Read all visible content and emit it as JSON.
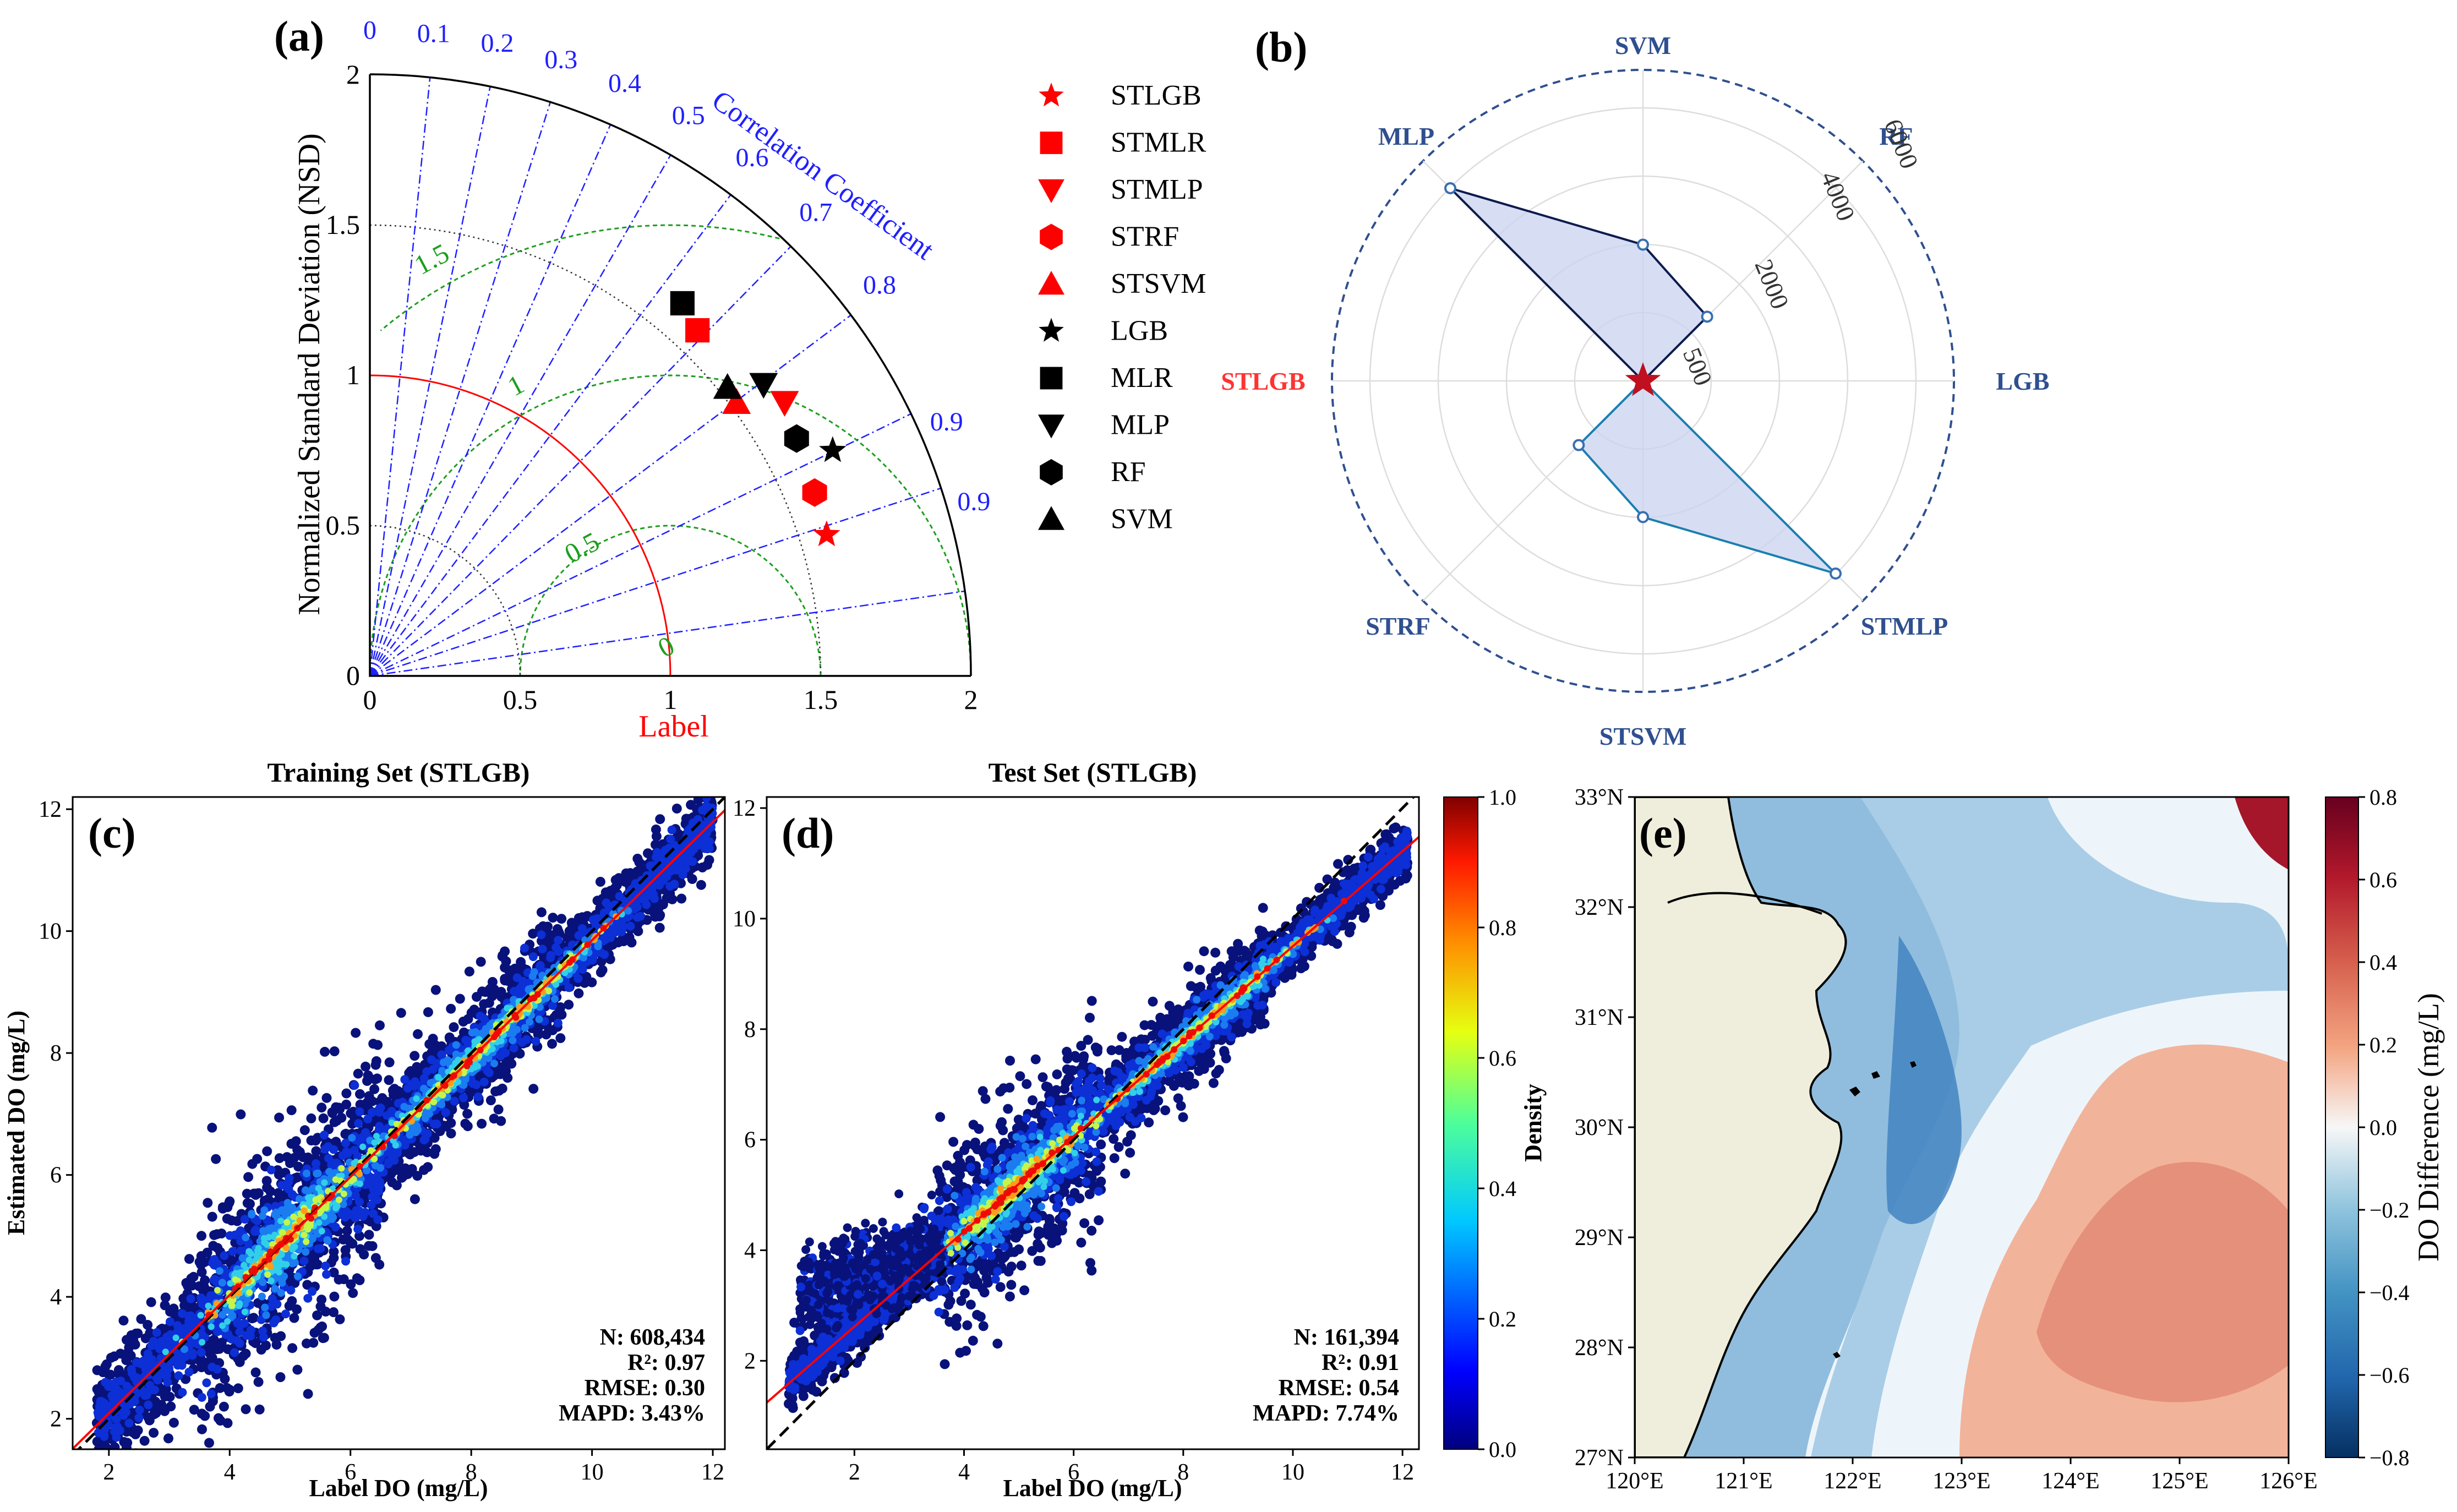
{
  "chart_data": [
    {
      "panel": "(a)",
      "type": "scatter",
      "subtype": "taylor-diagram",
      "ylabel": "Normalized Standard Deviation (NSD)",
      "xlabel": "Label",
      "arc_label": "Correlation Coefficient",
      "axis_ticks": [
        "0",
        "0.5",
        "1",
        "1.5",
        "2"
      ],
      "corr_ticks": [
        "0",
        "0.1",
        "0.2",
        "0.3",
        "0.4",
        "0.5",
        "0.6",
        "0.7",
        "0.8",
        "0.9",
        "0.9"
      ],
      "rmsd_ticks": [
        "0",
        "0.5",
        "1",
        "1.5"
      ],
      "xlim": [
        0,
        2
      ],
      "ylim": [
        0,
        2
      ],
      "points": [
        {
          "name": "STLGB",
          "x": 1.52,
          "y": 0.47,
          "marker": "star",
          "color": "#ff0000"
        },
        {
          "name": "STMLR",
          "x": 1.09,
          "y": 1.15,
          "marker": "square",
          "color": "#ff0000"
        },
        {
          "name": "STMLP",
          "x": 1.38,
          "y": 0.91,
          "marker": "tri-down",
          "color": "#ff0000"
        },
        {
          "name": "STRF",
          "x": 1.48,
          "y": 0.61,
          "marker": "hexagon",
          "color": "#ff0000"
        },
        {
          "name": "STSVM",
          "x": 1.22,
          "y": 0.91,
          "marker": "tri-up",
          "color": "#ff0000"
        },
        {
          "name": "LGB",
          "x": 1.54,
          "y": 0.75,
          "marker": "star",
          "color": "#000000"
        },
        {
          "name": "MLR",
          "x": 1.04,
          "y": 1.24,
          "marker": "square",
          "color": "#000000"
        },
        {
          "name": "MLP",
          "x": 1.31,
          "y": 0.97,
          "marker": "tri-down",
          "color": "#000000"
        },
        {
          "name": "RF",
          "x": 1.42,
          "y": 0.79,
          "marker": "hexagon",
          "color": "#000000"
        },
        {
          "name": "SVM",
          "x": 1.19,
          "y": 0.96,
          "marker": "tri-up",
          "color": "#000000"
        }
      ]
    },
    {
      "panel": "(b)",
      "type": "radar",
      "categories": [
        "SVM",
        "RF",
        "LGB",
        "STMLP",
        "STSVM",
        "STRF",
        "STLGB",
        "MLP"
      ],
      "values": [
        3000,
        2000,
        0,
        6000,
        3000,
        2000,
        0,
        6000
      ],
      "radial_ticks": [
        "500",
        "2000",
        "4000",
        "6000"
      ],
      "rlim": [
        0,
        6000
      ]
    },
    {
      "panel": "(c)",
      "type": "scatter",
      "subtype": "density-scatter",
      "title": "Training Set (STLGB)",
      "xlabel": "Label DO (mg/L)",
      "ylabel": "Estimated DO (mg/L)",
      "xlim": [
        1.4,
        12.2
      ],
      "ylim": [
        1.5,
        12.2
      ],
      "x_ticks": [
        2,
        4,
        6,
        8,
        10,
        12
      ],
      "y_ticks": [
        2,
        4,
        6,
        8,
        10,
        12
      ],
      "fit_line": {
        "slope": 0.97,
        "intercept": 0.15
      },
      "stats": [
        "N: 608,434",
        "R²: 0.97",
        "RMSE: 0.30",
        "MAPD: 3.43%"
      ]
    },
    {
      "panel": "(d)",
      "type": "scatter",
      "subtype": "density-scatter",
      "title": "Test Set (STLGB)",
      "xlabel": "Label DO (mg/L)",
      "ylabel": "",
      "xlim": [
        0.4,
        12.3
      ],
      "ylim": [
        0.4,
        12.2
      ],
      "x_ticks": [
        2,
        4,
        6,
        8,
        10,
        12
      ],
      "y_ticks": [
        2,
        4,
        6,
        8,
        10,
        12
      ],
      "fit_line": {
        "slope": 0.86,
        "intercept": 0.9
      },
      "stats": [
        "N: 161,394",
        "R²: 0.91",
        "RMSE: 0.54",
        "MAPD: 7.74%"
      ],
      "colorbar": {
        "label": "Density",
        "ticks": [
          "0.0",
          "0.2",
          "0.4",
          "0.6",
          "0.8",
          "1.0"
        ]
      }
    },
    {
      "panel": "(e)",
      "type": "heatmap",
      "subtype": "map",
      "x_ticks": [
        "120°E",
        "121°E",
        "122°E",
        "123°E",
        "124°E",
        "125°E",
        "126°E"
      ],
      "y_ticks": [
        "27°N",
        "28°N",
        "29°N",
        "30°N",
        "31°N",
        "32°N",
        "33°N"
      ],
      "colorbar": {
        "label": "DO Difference (mg/L)",
        "ticks": [
          "0.8",
          "0.6",
          "0.4",
          "0.2",
          "0.0",
          "−0.2",
          "−0.4",
          "−0.6",
          "−0.8"
        ],
        "range": [
          -0.8,
          0.8
        ]
      }
    }
  ],
  "panel_labels": {
    "a": "(a)",
    "b": "(b)",
    "c": "(c)",
    "d": "(d)",
    "e": "(e)"
  },
  "colors": {
    "blue_lines": "#1f1fff",
    "green_lines": "#1e9e1e",
    "radar_edge": "#2f4f8f",
    "red": "#ff0000"
  }
}
